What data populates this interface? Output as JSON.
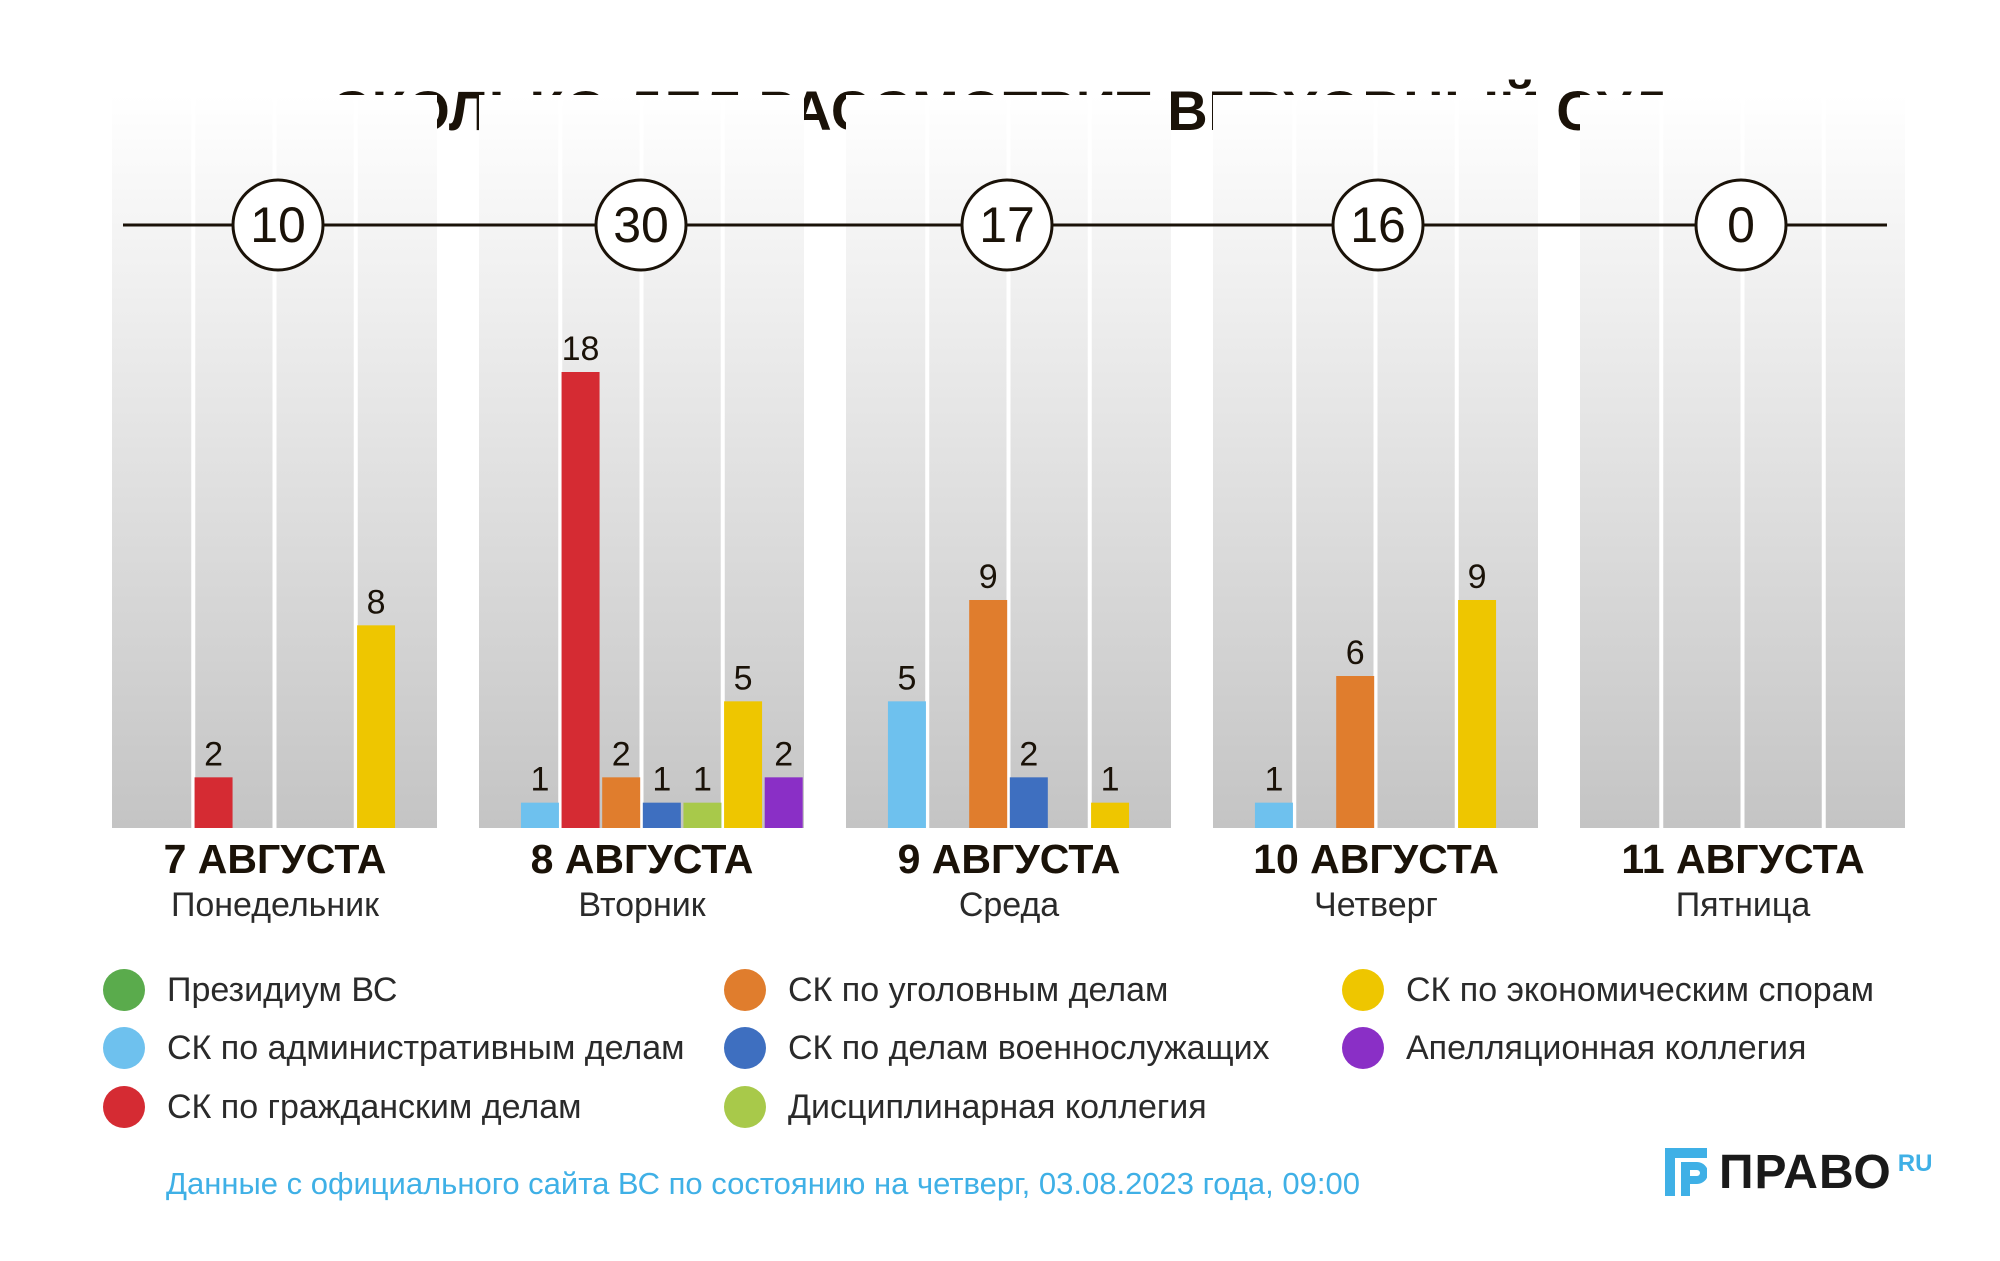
{
  "title": "СКОЛЬКО ДЕЛ РАССМОТРИТ ВЕРХОВНЫЙ СУД",
  "chart_data": {
    "type": "bar",
    "title": "СКОЛЬКО ДЕЛ РАССМОТРИТ ВЕРХОВНЫЙ СУД",
    "categories": [
      "7 АВГУСТА",
      "8 АВГУСТА",
      "9 АВГУСТА",
      "10 АВГУСТА",
      "11 АВГУСТА"
    ],
    "day_names": [
      "Понедельник",
      "Вторник",
      "Среда",
      "Четверг",
      "Пятница"
    ],
    "totals": [
      "10",
      "30",
      "17",
      "16",
      "0"
    ],
    "series": [
      {
        "name": "Президиум ВС",
        "color": "#5aab4c",
        "values": [
          0,
          0,
          0,
          0,
          0
        ]
      },
      {
        "name": "СК по административным делам",
        "color": "#6ec1ee",
        "values": [
          0,
          1,
          5,
          1,
          0
        ]
      },
      {
        "name": "СК по гражданским делам",
        "color": "#d52b33",
        "values": [
          2,
          18,
          0,
          0,
          0
        ]
      },
      {
        "name": "СК по уголовным делам",
        "color": "#e07d2d",
        "values": [
          0,
          2,
          9,
          6,
          0
        ]
      },
      {
        "name": "СК по делам военнослужащих",
        "color": "#3e6fc0",
        "values": [
          0,
          1,
          2,
          0,
          0
        ]
      },
      {
        "name": "Дисциплинарная коллегия",
        "color": "#a8c94a",
        "values": [
          0,
          1,
          0,
          0,
          0
        ]
      },
      {
        "name": "СК по экономическим спорам",
        "color": "#eec600",
        "values": [
          8,
          5,
          1,
          9,
          0
        ]
      },
      {
        "name": "Апелляционная коллегия",
        "color": "#8a2fc6",
        "values": [
          0,
          2,
          0,
          0,
          0
        ]
      }
    ],
    "ylim": [
      0,
      18
    ],
    "xlabel": "",
    "ylabel": ""
  },
  "legend": [
    {
      "label": "Президиум ВС",
      "color": "#5aab4c"
    },
    {
      "label": "СК по административным делам",
      "color": "#6ec1ee"
    },
    {
      "label": "СК по гражданским делам",
      "color": "#d52b33"
    },
    {
      "label": "СК по уголовным делам",
      "color": "#e07d2d"
    },
    {
      "label": "СК по делам военнослужащих",
      "color": "#3e6fc0"
    },
    {
      "label": "Дисциплинарная коллегия",
      "color": "#a8c94a"
    },
    {
      "label": "СК по экономическим спорам",
      "color": "#eec600"
    },
    {
      "label": "Апелляционная коллегия",
      "color": "#8a2fc6"
    }
  ],
  "source_note": "Данные с официального сайта ВС по состоянию на четверг, 03.08.2023 года, 09:00",
  "logo": {
    "text": "ПРАВО",
    "suffix": "RU",
    "accent": "#3fb0e6"
  }
}
